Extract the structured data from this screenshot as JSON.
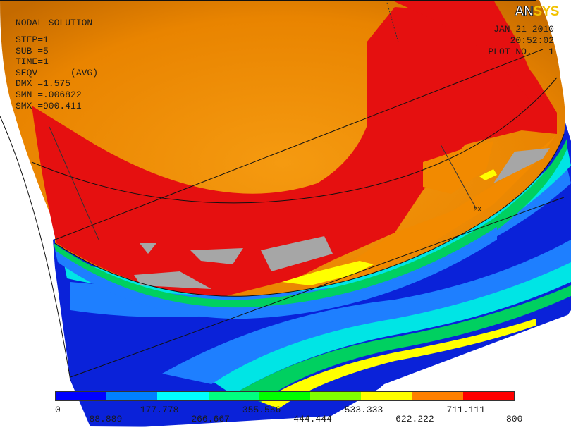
{
  "header": {
    "title": "NODAL SOLUTION",
    "step": "STEP=1",
    "sub": "SUB =5",
    "time": "TIME=1",
    "result": "SEQV      (AVG)",
    "dmx": "DMX =1.575",
    "smn": "SMN =.006822",
    "smx": "SMX =900.411"
  },
  "stamp": {
    "date": "JAN 21 2010",
    "clock": "20:52:02",
    "plot": "PLOT NO.   1"
  },
  "logo": {
    "an": "AN",
    "sys": "SYS"
  },
  "legend": {
    "colors": [
      "#0000ff",
      "#0080ff",
      "#00ffff",
      "#00ff80",
      "#00ff00",
      "#80ff00",
      "#ffff00",
      "#ff8000",
      "#ff0000"
    ],
    "labels_top": [
      "0",
      "177.778",
      "355.556",
      "533.333",
      "711.111"
    ],
    "labels_bottom": [
      "88.889",
      "266.667",
      "444.444",
      "622.222",
      "800"
    ]
  },
  "plot_colors": {
    "background": "#ffffff",
    "orange": "#f28a00",
    "red": "#e51010",
    "gray": "#a6a6a6",
    "blue": "#0a22d9",
    "light_blue": "#1e90ff",
    "cyan": "#00e5e5",
    "green": "#00d060",
    "yellow": "#ffff00"
  }
}
